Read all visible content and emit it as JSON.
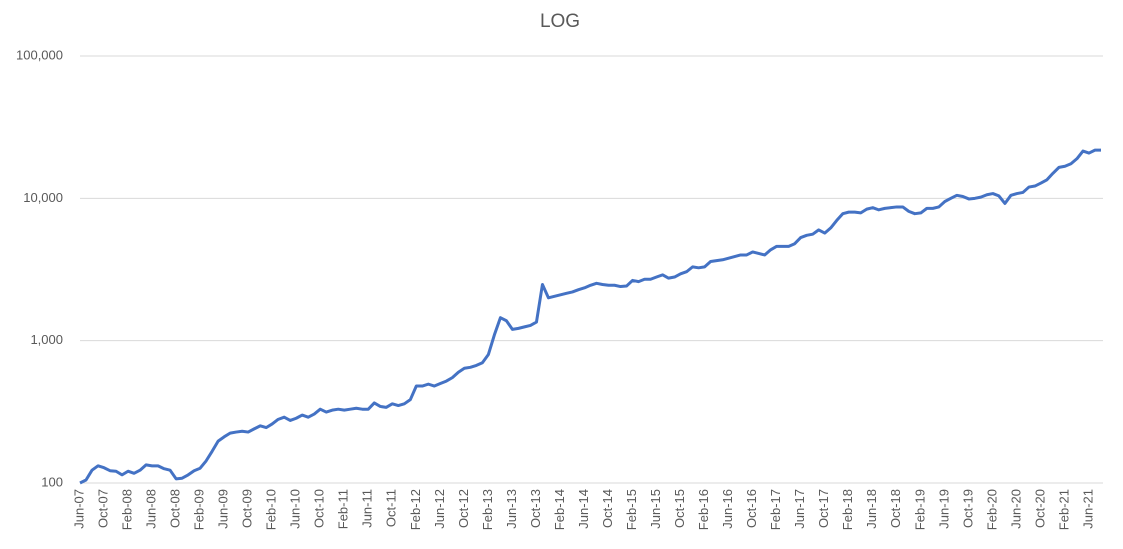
{
  "chart_data": {
    "type": "line",
    "title": "LOG",
    "categories": [
      "Jun-07",
      null,
      null,
      null,
      "Oct-07",
      null,
      null,
      null,
      "Feb-08",
      null,
      null,
      null,
      "Jun-08",
      null,
      null,
      null,
      "Oct-08",
      null,
      null,
      null,
      "Feb-09",
      null,
      null,
      null,
      "Jun-09",
      null,
      null,
      null,
      "Oct-09",
      null,
      null,
      null,
      "Feb-10",
      null,
      null,
      null,
      "Jun-10",
      null,
      null,
      null,
      "Oct-10",
      null,
      null,
      null,
      "Feb-11",
      null,
      null,
      null,
      "Jun-11",
      null,
      null,
      null,
      "Oct-11",
      null,
      null,
      null,
      "Feb-12",
      null,
      null,
      null,
      "Jun-12",
      null,
      null,
      null,
      "Oct-12",
      null,
      null,
      null,
      "Feb-13",
      null,
      null,
      null,
      "Jun-13",
      null,
      null,
      null,
      "Oct-13",
      null,
      null,
      null,
      "Feb-14",
      null,
      null,
      null,
      "Jun-14",
      null,
      null,
      null,
      "Oct-14",
      null,
      null,
      null,
      "Feb-15",
      null,
      null,
      null,
      "Jun-15",
      null,
      null,
      null,
      "Oct-15",
      null,
      null,
      null,
      "Feb-16",
      null,
      null,
      null,
      "Jun-16",
      null,
      null,
      null,
      "Oct-16",
      null,
      null,
      null,
      "Feb-17",
      null,
      null,
      null,
      "Jun-17",
      null,
      null,
      null,
      "Oct-17",
      null,
      null,
      null,
      "Feb-18",
      null,
      null,
      null,
      "Jun-18",
      null,
      null,
      null,
      "Oct-18",
      null,
      null,
      null,
      "Feb-19",
      null,
      null,
      null,
      "Jun-19",
      null,
      null,
      null,
      "Oct-19",
      null,
      null,
      null,
      "Feb-20",
      null,
      null,
      null,
      "Jun-20",
      null,
      null,
      null,
      "Oct-20",
      null,
      null,
      null,
      "Feb-21",
      null,
      null,
      null,
      "Jun-21",
      null,
      null
    ],
    "values": [
      100,
      105,
      123,
      132,
      128,
      122,
      121,
      114,
      121,
      117,
      123,
      134,
      132,
      132,
      126,
      123,
      107,
      108,
      114,
      122,
      127,
      143,
      167,
      197,
      211,
      224,
      228,
      231,
      228,
      240,
      252,
      245,
      260,
      280,
      290,
      275,
      285,
      300,
      290,
      305,
      330,
      315,
      325,
      330,
      325,
      330,
      335,
      330,
      330,
      365,
      345,
      340,
      360,
      350,
      360,
      385,
      480,
      480,
      495,
      480,
      500,
      520,
      550,
      600,
      640,
      650,
      670,
      700,
      800,
      1100,
      1450,
      1380,
      1200,
      1220,
      1250,
      1280,
      1350,
      2480,
      2000,
      2050,
      2100,
      2150,
      2200,
      2280,
      2350,
      2450,
      2530,
      2480,
      2450,
      2450,
      2400,
      2420,
      2650,
      2600,
      2700,
      2700,
      2800,
      2900,
      2750,
      2800,
      2950,
      3050,
      3300,
      3250,
      3300,
      3600,
      3650,
      3700,
      3800,
      3900,
      4000,
      4000,
      4200,
      4100,
      4000,
      4350,
      4600,
      4600,
      4600,
      4800,
      5300,
      5500,
      5600,
      6000,
      5700,
      6200,
      7000,
      7800,
      8000,
      8000,
      7900,
      8400,
      8600,
      8300,
      8500,
      8600,
      8700,
      8700,
      8100,
      7800,
      7900,
      8500,
      8500,
      8700,
      9500,
      10000,
      10500,
      10300,
      9900,
      10000,
      10200,
      10600,
      10800,
      10400,
      9200,
      10500,
      10800,
      11000,
      12000,
      12200,
      12800,
      13500,
      15000,
      16500,
      16800,
      17500,
      19000,
      21500,
      20800,
      21800,
      21800
    ],
    "color": "#4472c4",
    "log": true,
    "grid": true,
    "ylim": [
      100,
      100000
    ],
    "yticks": [
      100,
      {
        "value": 1000,
        "label": "1,000"
      },
      {
        "value": 10000,
        "label": "10,000"
      },
      {
        "value": 100000,
        "label": "100,000"
      }
    ]
  }
}
